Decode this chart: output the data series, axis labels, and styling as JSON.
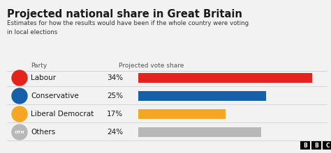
{
  "title": "Projected national share in Great Britain",
  "subtitle": "Estimates for how the results would have been if the whole country were voting\nin local elections",
  "col_header_party": "Party",
  "col_header_votes": "Projected vote share",
  "parties": [
    "Labour",
    "Conservative",
    "Liberal Democrat",
    "Others"
  ],
  "values": [
    34,
    25,
    17,
    24
  ],
  "labels": [
    "34%",
    "25%",
    "17%",
    "24%"
  ],
  "bar_colors": [
    "#e4241c",
    "#1560a8",
    "#f5a623",
    "#b8b8b8"
  ],
  "icon_colors": [
    "#e4241c",
    "#1560a8",
    "#f5a623",
    "#b8b8b8"
  ],
  "icon_labels": [
    "",
    "",
    "",
    "OTH"
  ],
  "background_color": "#f2f2f2",
  "text_color": "#1a1a1a",
  "subtitle_color": "#333333",
  "header_color": "#555555",
  "bar_max": 36,
  "divider_color": "#cccccc",
  "bbc_bg": "#000000",
  "bbc_text": "#ffffff"
}
